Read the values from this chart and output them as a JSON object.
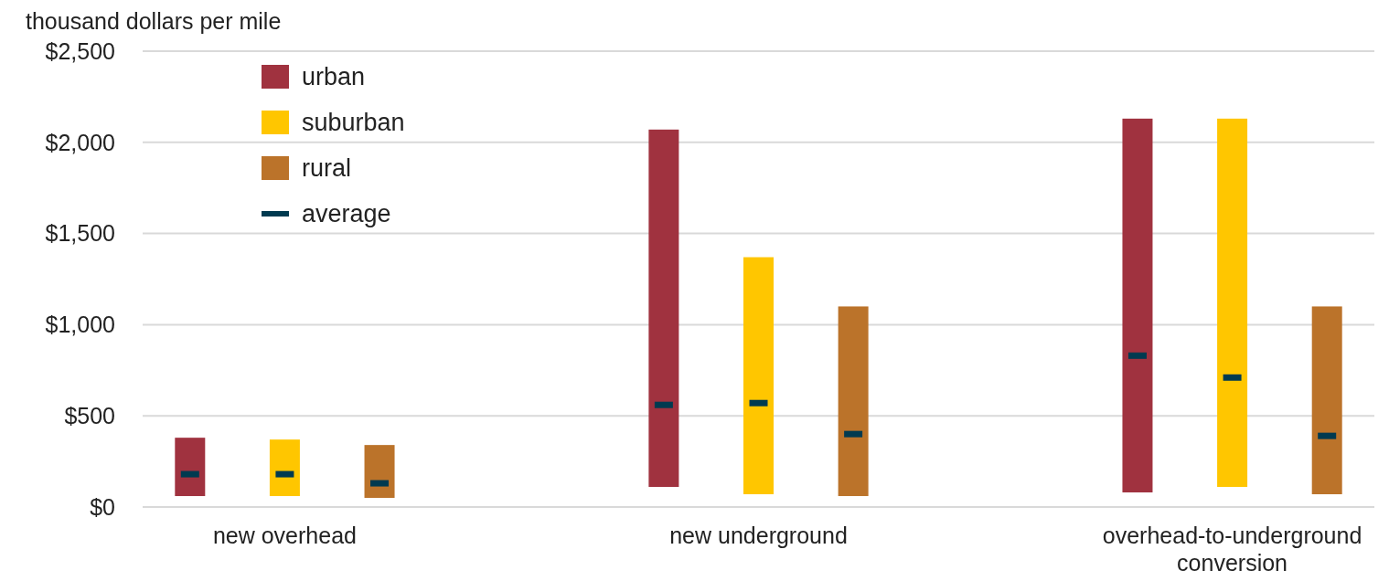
{
  "chart_data": {
    "type": "bar",
    "ylabel": "thousand dollars per mile",
    "categories": [
      null,
      "new overhead",
      null,
      null,
      null,
      null,
      "new underground",
      null,
      null,
      null,
      null,
      "overhead-to-underground conversion",
      null
    ],
    "series": [
      {
        "name": "urban",
        "color": "#a0323f",
        "base": [
          60,
          null,
          null,
          null,
          null,
          110,
          null,
          null,
          null,
          null,
          80,
          null,
          null
        ],
        "values": [
          320,
          null,
          null,
          null,
          null,
          1960,
          null,
          null,
          null,
          null,
          2050,
          null,
          null
        ]
      },
      {
        "name": "suburban",
        "color": "#ffc600",
        "base": [
          null,
          60,
          null,
          null,
          null,
          null,
          70,
          null,
          null,
          null,
          null,
          110,
          null
        ],
        "values": [
          null,
          310,
          null,
          null,
          null,
          null,
          1300,
          null,
          null,
          null,
          null,
          2020,
          null
        ]
      },
      {
        "name": "rural",
        "color": "#bb732a",
        "base": [
          null,
          null,
          50,
          null,
          null,
          null,
          null,
          60,
          null,
          null,
          null,
          null,
          70
        ],
        "values": [
          null,
          null,
          290,
          null,
          null,
          null,
          null,
          1040,
          null,
          null,
          null,
          null,
          1030
        ]
      },
      {
        "name": "average",
        "type": "scatter",
        "color": "#003a50",
        "values": [
          180,
          180,
          130,
          null,
          null,
          560,
          570,
          400,
          null,
          null,
          830,
          710,
          390
        ]
      }
    ],
    "ylim": [
      0,
      2500
    ],
    "yticks": [
      {
        "value": 0,
        "label": "$0"
      },
      {
        "value": 500,
        "label": "$500"
      },
      {
        "value": 1000,
        "label": "$1,000"
      },
      {
        "value": 1500,
        "label": "$1,500"
      },
      {
        "value": 2000,
        "label": "$2,000"
      },
      {
        "value": 2500,
        "label": "$2,500"
      }
    ],
    "grid": "y",
    "legend": "top left"
  }
}
